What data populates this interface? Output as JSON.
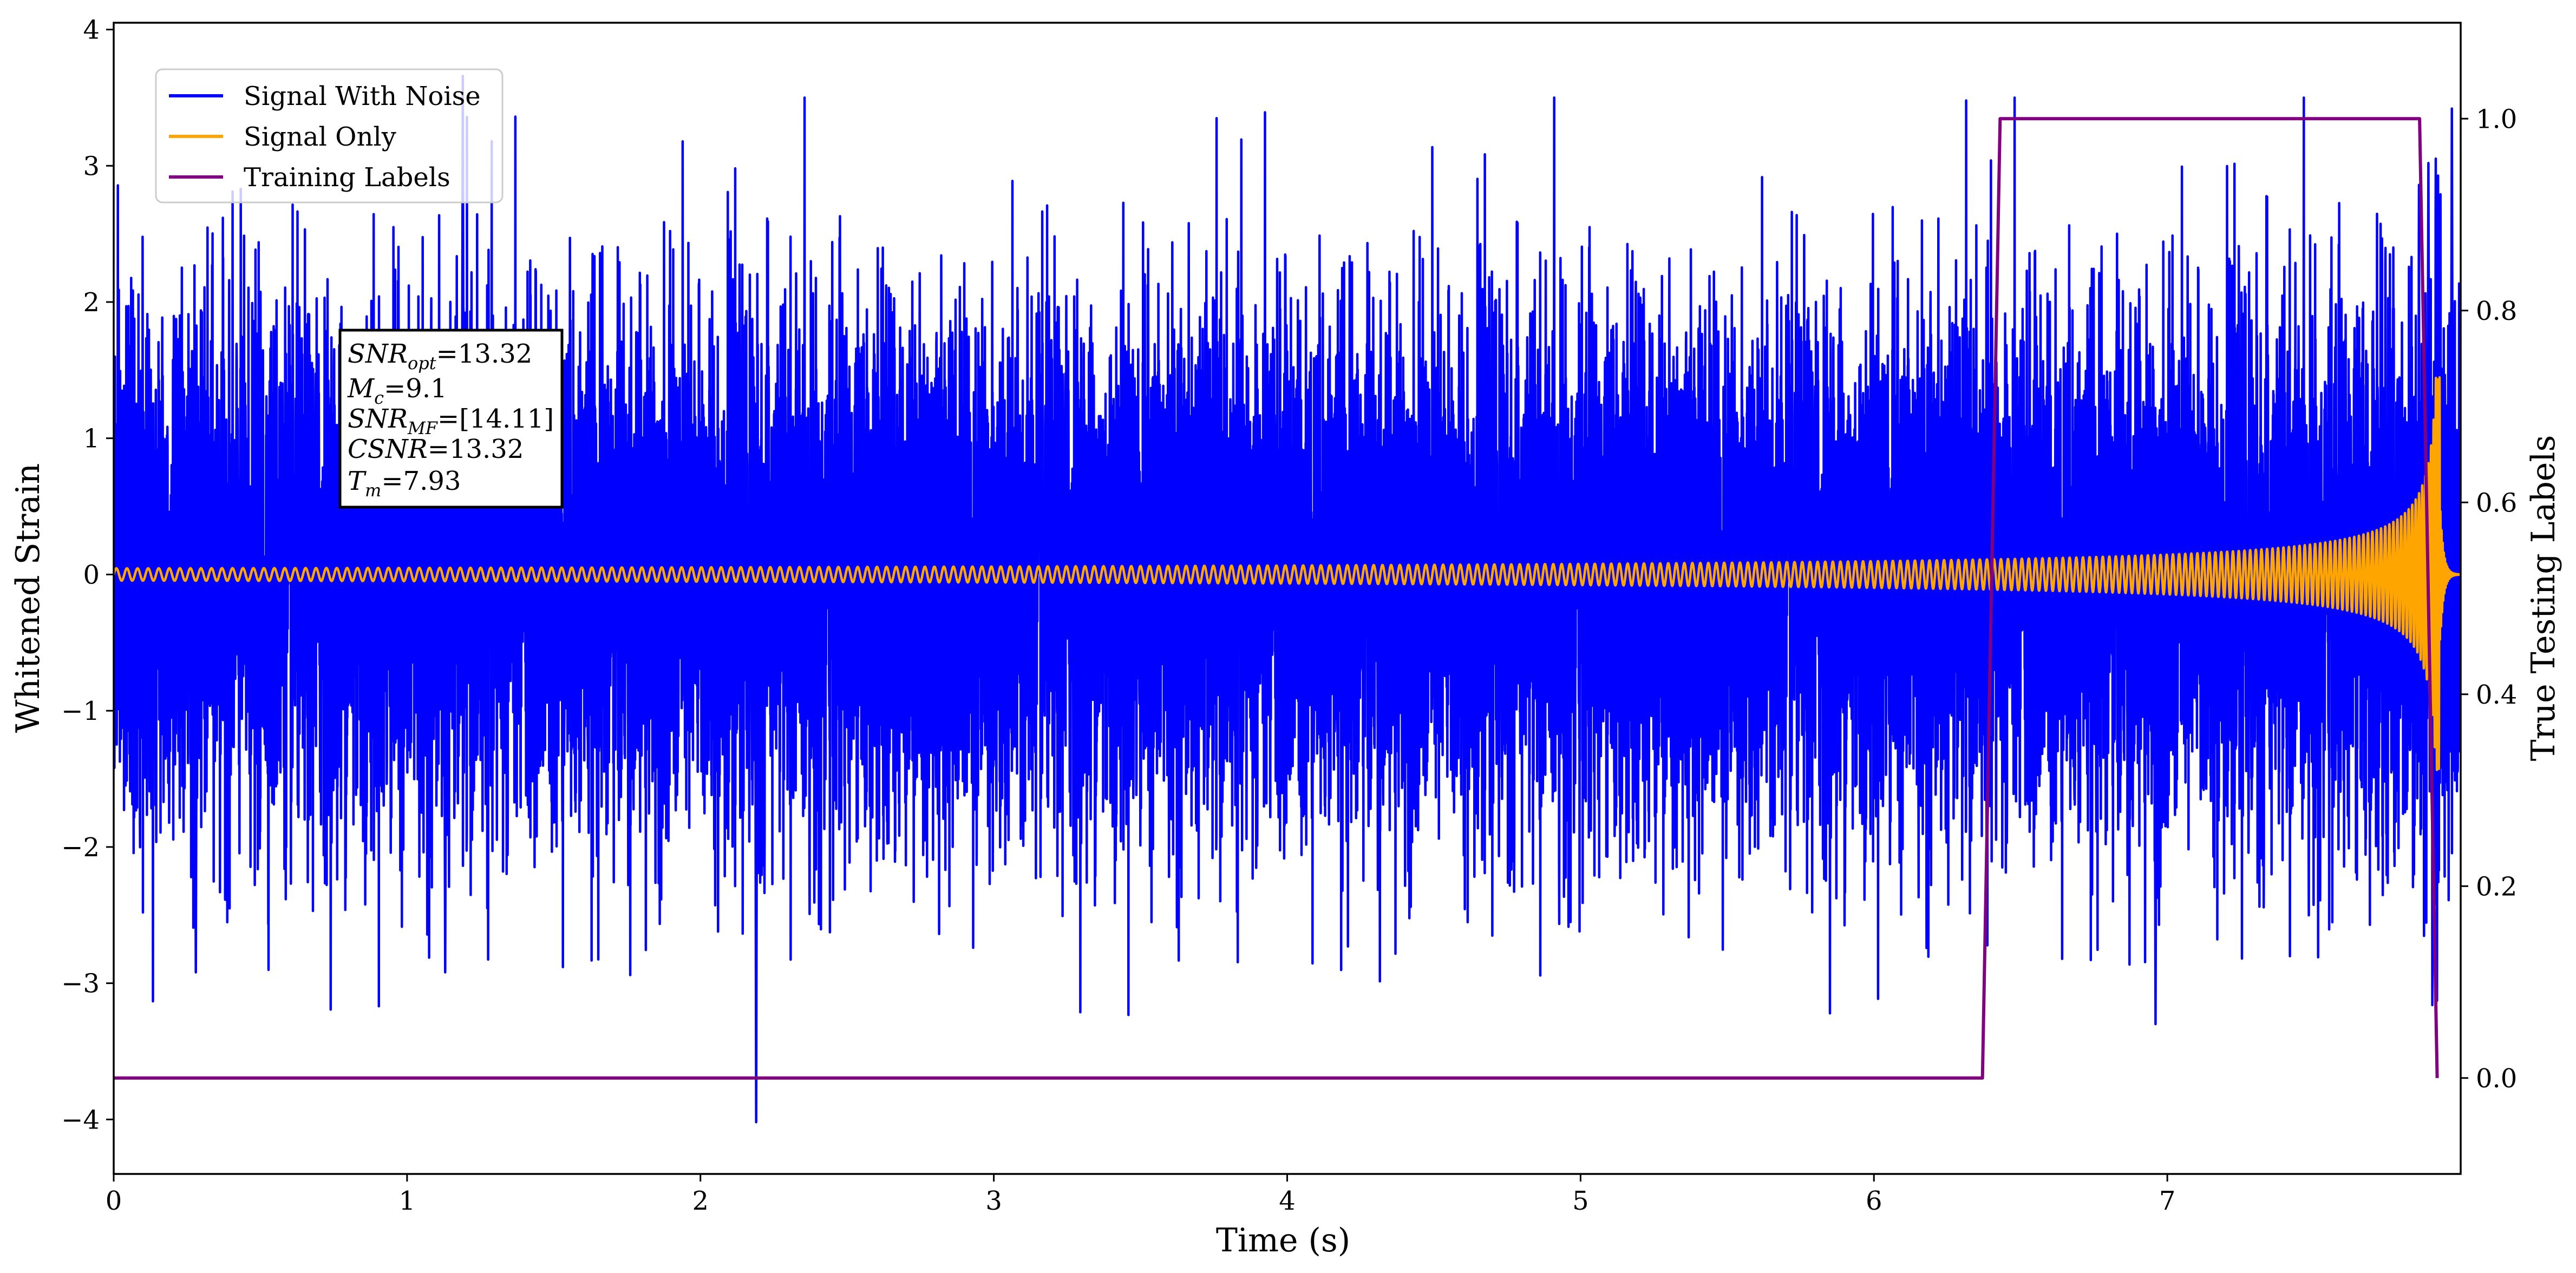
{
  "chart_data": {
    "type": "line",
    "xlabel": "Time (s)",
    "ylabel": "Whitened Strain",
    "y2label": "True Testing Labels",
    "xlim": [
      0,
      8
    ],
    "ylim": [
      -4.4,
      4.05
    ],
    "y2lim": [
      -0.1,
      1.1
    ],
    "x_ticks": [
      0,
      1,
      2,
      3,
      4,
      5,
      6,
      7
    ],
    "x_tick_labels": [
      "0",
      "1",
      "2",
      "3",
      "4",
      "5",
      "6",
      "7"
    ],
    "y_ticks": [
      -4,
      -3,
      -2,
      -1,
      0,
      1,
      2,
      3,
      4
    ],
    "y_tick_labels": [
      "−4",
      "−3",
      "−2",
      "−1",
      "0",
      "1",
      "2",
      "3",
      "4"
    ],
    "y2_ticks": [
      0.0,
      0.2,
      0.4,
      0.6,
      0.8,
      1.0
    ],
    "y2_tick_labels": [
      "0.0",
      "0.2",
      "0.4",
      "0.6",
      "0.8",
      "1.0"
    ],
    "legend": {
      "placement": "upper-left",
      "entries": [
        {
          "label": "Signal With Noise",
          "color": "#0000ff"
        },
        {
          "label": "Signal Only",
          "color": "#ffa500"
        },
        {
          "label": "Training Labels",
          "color": "#800080"
        }
      ]
    },
    "annotation": {
      "lines": [
        {
          "main": "SNR",
          "sub": "opt",
          "value": "=13.32"
        },
        {
          "main": "M",
          "sub": "c",
          "value": "=9.1"
        },
        {
          "main": "SNR",
          "sub": "MF",
          "value": "=[14.11]"
        },
        {
          "main": "CSNR",
          "sub": "",
          "value": "=13.32"
        },
        {
          "main": "T",
          "sub": "m",
          "value": "=7.93"
        }
      ]
    },
    "series": [
      {
        "name": "Signal With Noise",
        "color": "#0000ff",
        "kind": "noise",
        "duration": 8.0,
        "sample_rate": 2048,
        "std": 0.95,
        "extremes": [
          {
            "x": 1.19,
            "y": 3.66
          },
          {
            "x": 2.19,
            "y": -4.02
          },
          {
            "x": 0.28,
            "y": -2.92
          },
          {
            "x": 1.13,
            "y": -2.92
          },
          {
            "x": 6.96,
            "y": -3.3
          },
          {
            "x": 7.89,
            "y": 3.02
          },
          {
            "x": 7.97,
            "y": 3.42
          }
        ]
      },
      {
        "name": "Signal Only",
        "color": "#ffa500",
        "kind": "chirp",
        "merger_time": 7.93,
        "end_time": 8.0,
        "amp_start": 0.045,
        "amp_end": 1.45,
        "freq_start": 23,
        "freq_end": 95
      },
      {
        "name": "Training Labels",
        "color": "#800080",
        "kind": "step",
        "x": [
          0,
          6.37,
          6.43,
          7.86,
          7.92
        ],
        "y": [
          0,
          0,
          1,
          1,
          0
        ]
      }
    ]
  }
}
